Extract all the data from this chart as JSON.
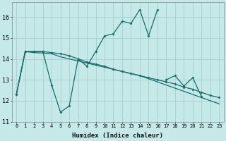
{
  "xlabel": "Humidex (Indice chaleur)",
  "background_color": "#c5e8e8",
  "grid_color": "#a8d0d0",
  "line_color": "#1a6b6b",
  "xlim": [
    -0.5,
    23.5
  ],
  "ylim": [
    11,
    16.7
  ],
  "yticks": [
    11,
    12,
    13,
    14,
    15,
    16
  ],
  "xticks": [
    0,
    1,
    2,
    3,
    4,
    5,
    6,
    7,
    8,
    9,
    10,
    11,
    12,
    13,
    14,
    15,
    16,
    17,
    18,
    19,
    20,
    21,
    22,
    23
  ],
  "line1_y": [
    12.3,
    14.35,
    14.35,
    14.35,
    12.75,
    11.45,
    11.75,
    14.0,
    13.65,
    14.35,
    15.1,
    15.2,
    15.8,
    15.7,
    16.35,
    15.1,
    16.35,
    null,
    null,
    null,
    null,
    null,
    null,
    null
  ],
  "line2_y": [
    null,
    null,
    null,
    null,
    null,
    null,
    null,
    null,
    null,
    null,
    null,
    null,
    null,
    null,
    null,
    null,
    null,
    13.0,
    13.2,
    12.7,
    13.1,
    12.2,
    null,
    null
  ],
  "line3_y": [
    12.3,
    14.35,
    14.35,
    14.35,
    14.3,
    14.25,
    14.15,
    14.0,
    13.85,
    13.75,
    13.65,
    13.5,
    13.4,
    13.3,
    13.2,
    13.1,
    13.0,
    12.9,
    12.8,
    12.65,
    12.55,
    12.4,
    12.25,
    12.15
  ],
  "line4_y": [
    12.3,
    14.35,
    14.3,
    14.28,
    14.25,
    14.1,
    14.0,
    13.9,
    13.8,
    13.7,
    13.6,
    13.5,
    13.4,
    13.3,
    13.2,
    13.05,
    12.9,
    12.75,
    12.6,
    12.45,
    12.3,
    12.15,
    12.0,
    11.85
  ]
}
